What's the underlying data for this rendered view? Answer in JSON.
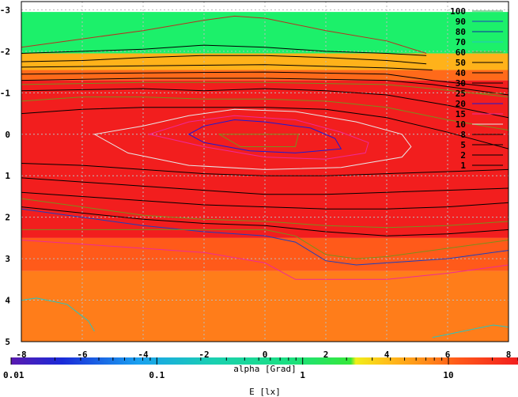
{
  "chart_data": {
    "type": "heatmap",
    "title": "",
    "xlabel": "alpha [Grad]",
    "ylabel": "",
    "xlim": [
      -8,
      8
    ],
    "ylim": [
      -3.2,
      5
    ],
    "y_inverted": true,
    "x_ticks": [
      "-8",
      "-6",
      "-4",
      "-2",
      "0",
      "2",
      "4",
      "6",
      "8"
    ],
    "y_ticks": [
      "-3",
      "-2",
      "-1",
      "0",
      "1",
      "2",
      "3",
      "4",
      "5"
    ],
    "grid": true,
    "legend": {
      "placement": "top-right",
      "entries": [
        {
          "label": "100",
          "color": "#22b14c"
        },
        {
          "label": "90",
          "color": "#1c3fbf"
        },
        {
          "label": "80",
          "color": "#0a2aa0"
        },
        {
          "label": "70",
          "color": "#25c5c0"
        },
        {
          "label": "60",
          "color": "#7a8f1c"
        },
        {
          "label": "50",
          "color": "#000000"
        },
        {
          "label": "40",
          "color": "#000000"
        },
        {
          "label": "30",
          "color": "#000000"
        },
        {
          "label": "25",
          "color": "#8a7a1a"
        },
        {
          "label": "20",
          "color": "#1a1ad8"
        },
        {
          "label": "15",
          "color": "#ee2a98"
        },
        {
          "label": "10",
          "color": "#e8e8e8"
        },
        {
          "label": "8",
          "color": "#000000"
        },
        {
          "label": "5",
          "color": "#000000"
        },
        {
          "label": "2",
          "color": "#000000"
        },
        {
          "label": "1",
          "color": "#000000"
        }
      ]
    },
    "zones": [
      {
        "y_from": -3.2,
        "y_to": -2.95,
        "color": "#ffffff"
      },
      {
        "y_from": -2.95,
        "y_to": -1.95,
        "color": "#1cf06a"
      },
      {
        "y_from": -1.95,
        "y_to": -1.55,
        "color": "#ffb21a"
      },
      {
        "y_from": -1.55,
        "y_to": -1.3,
        "color": "#ff6a1a"
      },
      {
        "y_from": -1.3,
        "y_to": 2.5,
        "color": "#f21e1e"
      },
      {
        "y_from": 2.5,
        "y_to": 3.3,
        "color": "#ff5a1a"
      },
      {
        "y_from": 3.3,
        "y_to": 5,
        "color": "#ff7d1a"
      }
    ],
    "contours": [
      {
        "color": "#b83020",
        "points": [
          [
            -8,
            -2.1
          ],
          [
            -6,
            -2.3
          ],
          [
            -4,
            -2.5
          ],
          [
            -2,
            -2.75
          ],
          [
            -1,
            -2.85
          ],
          [
            0,
            -2.8
          ],
          [
            2,
            -2.5
          ],
          [
            4,
            -2.25
          ],
          [
            5.3,
            -1.95
          ]
        ]
      },
      {
        "color": "#000000",
        "points": [
          [
            -8,
            -1.95
          ],
          [
            -6,
            -2.0
          ],
          [
            -4,
            -2.05
          ],
          [
            -2,
            -2.15
          ],
          [
            0,
            -2.1
          ],
          [
            2,
            -2.0
          ],
          [
            4,
            -1.95
          ],
          [
            5.3,
            -1.9
          ]
        ]
      },
      {
        "color": "#000000",
        "points": [
          [
            -8,
            -1.75
          ],
          [
            -6,
            -1.78
          ],
          [
            -4,
            -1.85
          ],
          [
            -2,
            -1.9
          ],
          [
            0,
            -1.9
          ],
          [
            2,
            -1.85
          ],
          [
            4,
            -1.78
          ],
          [
            5.3,
            -1.7
          ]
        ]
      },
      {
        "color": "#000000",
        "points": [
          [
            -8,
            -1.62
          ],
          [
            -4,
            -1.65
          ],
          [
            0,
            -1.68
          ],
          [
            4,
            -1.6
          ],
          [
            5.5,
            -1.55
          ]
        ]
      },
      {
        "color": "#000000",
        "points": [
          [
            -8,
            -1.45
          ],
          [
            -4,
            -1.48
          ],
          [
            0,
            -1.5
          ],
          [
            4,
            -1.45
          ],
          [
            5.5,
            -1.3
          ],
          [
            8,
            -1.1
          ]
        ]
      },
      {
        "color": "#000000",
        "points": [
          [
            -8,
            -1.3
          ],
          [
            -4,
            -1.35
          ],
          [
            0,
            -1.35
          ],
          [
            4,
            -1.3
          ],
          [
            5.5,
            -1.2
          ],
          [
            8,
            -0.95
          ]
        ]
      },
      {
        "color": "#7a8f1c",
        "points": [
          [
            -8,
            -1.2
          ],
          [
            -4,
            -1.25
          ],
          [
            0,
            -1.25
          ],
          [
            4,
            -1.2
          ],
          [
            5.5,
            -1.1
          ],
          [
            8,
            -0.9
          ]
        ]
      },
      {
        "color": "#000000",
        "points": [
          [
            -8,
            -1.05
          ],
          [
            -4,
            -1.1
          ],
          [
            -2,
            -1.05
          ],
          [
            0,
            -1.1
          ],
          [
            2,
            -1.05
          ],
          [
            4,
            -0.95
          ],
          [
            6,
            -0.7
          ],
          [
            8,
            -0.4
          ]
        ]
      },
      {
        "color": "#7a8f1c",
        "points": [
          [
            -8,
            -0.8
          ],
          [
            -6,
            -0.9
          ],
          [
            -4,
            -0.9
          ],
          [
            -2,
            -0.85
          ],
          [
            0,
            -0.85
          ],
          [
            2,
            -0.8
          ],
          [
            4,
            -0.65
          ],
          [
            6,
            -0.35
          ],
          [
            8,
            -0.1
          ]
        ]
      },
      {
        "color": "#000000",
        "points": [
          [
            -8,
            -0.5
          ],
          [
            -6,
            -0.6
          ],
          [
            -4,
            -0.65
          ],
          [
            -2,
            -0.65
          ],
          [
            0,
            -0.65
          ],
          [
            2,
            -0.6
          ],
          [
            4,
            -0.4
          ],
          [
            6,
            -0.05
          ],
          [
            8,
            0.35
          ]
        ]
      },
      {
        "color": "#000000",
        "points": [
          [
            -8,
            0.7
          ],
          [
            -6,
            0.75
          ],
          [
            -4,
            0.85
          ],
          [
            -2,
            0.95
          ],
          [
            0,
            1.0
          ],
          [
            2,
            1.0
          ],
          [
            4,
            0.95
          ],
          [
            6,
            0.9
          ],
          [
            8,
            0.85
          ]
        ]
      },
      {
        "color": "#000000",
        "points": [
          [
            -8,
            1.05
          ],
          [
            -6,
            1.15
          ],
          [
            -4,
            1.25
          ],
          [
            -2,
            1.35
          ],
          [
            0,
            1.45
          ],
          [
            2,
            1.45
          ],
          [
            4,
            1.4
          ],
          [
            6,
            1.35
          ],
          [
            8,
            1.3
          ]
        ]
      },
      {
        "color": "#000000",
        "points": [
          [
            -8,
            1.4
          ],
          [
            -6,
            1.5
          ],
          [
            -4,
            1.6
          ],
          [
            -2,
            1.7
          ],
          [
            0,
            1.75
          ],
          [
            2,
            1.8
          ],
          [
            4,
            1.8
          ],
          [
            6,
            1.75
          ],
          [
            8,
            1.65
          ]
        ]
      },
      {
        "color": "#7a8f1c",
        "points": [
          [
            -8,
            1.55
          ],
          [
            -6,
            1.75
          ],
          [
            -4,
            1.95
          ],
          [
            -2,
            2.05
          ],
          [
            0,
            2.1
          ],
          [
            2,
            2.2
          ],
          [
            4,
            2.25
          ],
          [
            6,
            2.2
          ],
          [
            8,
            2.1
          ]
        ]
      },
      {
        "color": "#000000",
        "points": [
          [
            -8,
            1.75
          ],
          [
            -6,
            1.9
          ],
          [
            -4,
            2.05
          ],
          [
            -2,
            2.15
          ],
          [
            0,
            2.2
          ],
          [
            2,
            2.35
          ],
          [
            4,
            2.45
          ],
          [
            6,
            2.4
          ],
          [
            8,
            2.3
          ]
        ]
      },
      {
        "color": "#1c3fbf",
        "points": [
          [
            -8,
            1.8
          ],
          [
            -6,
            2.0
          ],
          [
            -4,
            2.2
          ],
          [
            -2,
            2.35
          ],
          [
            0,
            2.45
          ],
          [
            1,
            2.6
          ],
          [
            2,
            3.05
          ],
          [
            3,
            3.15
          ],
          [
            4,
            3.1
          ],
          [
            6,
            3.0
          ],
          [
            8,
            2.8
          ]
        ]
      },
      {
        "color": "#7a8f1c",
        "points": [
          [
            -8,
            2.3
          ],
          [
            -6,
            2.3
          ],
          [
            -4,
            2.3
          ],
          [
            -2,
            2.3
          ],
          [
            0,
            2.3
          ],
          [
            1,
            2.45
          ],
          [
            2,
            2.9
          ],
          [
            3,
            3.0
          ],
          [
            4,
            2.95
          ],
          [
            6,
            2.75
          ],
          [
            8,
            2.55
          ]
        ]
      },
      {
        "color": "#ee2a98",
        "points": [
          [
            -8,
            2.55
          ],
          [
            -6,
            2.65
          ],
          [
            -4,
            2.75
          ],
          [
            -2,
            2.85
          ],
          [
            0,
            3.1
          ],
          [
            1,
            3.5
          ],
          [
            4,
            3.5
          ],
          [
            6,
            3.35
          ],
          [
            8,
            3.15
          ]
        ]
      },
      {
        "color": "#25c5c0",
        "points": [
          [
            -8,
            4.0
          ],
          [
            -7.5,
            3.95
          ],
          [
            -6.5,
            4.1
          ],
          [
            -5.8,
            4.5
          ],
          [
            -5.6,
            4.75
          ]
        ]
      },
      {
        "color": "#25c5c0",
        "points": [
          [
            5.5,
            4.9
          ],
          [
            6.5,
            4.75
          ],
          [
            7.5,
            4.6
          ],
          [
            8,
            4.65
          ]
        ]
      },
      {
        "color": "#e8e8e8",
        "closed": true,
        "points": [
          [
            -5.6,
            0.0
          ],
          [
            -4.5,
            0.45
          ],
          [
            -2.5,
            0.75
          ],
          [
            0,
            0.85
          ],
          [
            2.5,
            0.8
          ],
          [
            4.5,
            0.55
          ],
          [
            4.8,
            0.3
          ],
          [
            4.5,
            0.0
          ],
          [
            3,
            -0.3
          ],
          [
            1,
            -0.55
          ],
          [
            -1,
            -0.6
          ],
          [
            -2.5,
            -0.45
          ],
          [
            -4,
            -0.2
          ]
        ]
      },
      {
        "color": "#ee2a98",
        "closed": true,
        "points": [
          [
            -3.8,
            0.0
          ],
          [
            -2,
            0.3
          ],
          [
            0,
            0.55
          ],
          [
            2,
            0.6
          ],
          [
            3.3,
            0.45
          ],
          [
            3.4,
            0.2
          ],
          [
            2.5,
            -0.05
          ],
          [
            1,
            -0.35
          ],
          [
            -1,
            -0.45
          ],
          [
            -2.5,
            -0.3
          ]
        ]
      },
      {
        "color": "#1a1ad8",
        "closed": true,
        "points": [
          [
            -2.5,
            0.0
          ],
          [
            -2,
            0.2
          ],
          [
            -0.5,
            0.4
          ],
          [
            1,
            0.45
          ],
          [
            2.5,
            0.35
          ],
          [
            2.3,
            0.1
          ],
          [
            1.5,
            -0.15
          ],
          [
            0,
            -0.3
          ],
          [
            -1,
            -0.35
          ],
          [
            -2,
            -0.2
          ]
        ]
      },
      {
        "color": "#7a8f1c",
        "closed": true,
        "points": [
          [
            -1.5,
            0.0
          ],
          [
            -0.8,
            0.3
          ],
          [
            1,
            0.3
          ],
          [
            1.1,
            0.0
          ],
          [
            -0.5,
            0.0
          ]
        ]
      }
    ],
    "colorbar": {
      "label": "E [lx]",
      "scale": "log",
      "range": [
        0.01,
        30
      ],
      "ticks": [
        "0.01",
        "0.1",
        "1",
        "10"
      ]
    }
  }
}
